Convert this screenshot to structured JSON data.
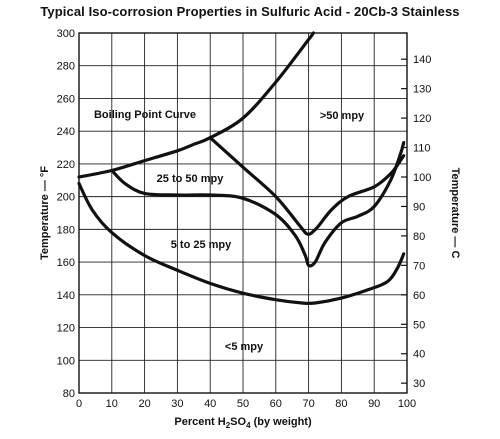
{
  "title": "Typical Iso-corrosion Properties in Sulfuric Acid - 20Cb-3 Stainless",
  "chart_data": {
    "type": "line",
    "title": "Typical Iso-corrosion Properties in Sulfuric Acid - 20Cb-3 Stainless",
    "xlabel": "Percent H2SO4 (by weight)",
    "ylabel": "Temperature — °F",
    "y2label": "Temperature — C",
    "xlim": [
      0,
      100
    ],
    "ylim": [
      80,
      300
    ],
    "y2lim": [
      27,
      149
    ],
    "grid": true,
    "x_ticks": [
      0,
      10,
      20,
      30,
      40,
      50,
      60,
      70,
      80,
      90,
      100
    ],
    "y_ticks": [
      80,
      100,
      120,
      140,
      160,
      180,
      200,
      220,
      240,
      260,
      280,
      300
    ],
    "y2_ticks": [
      30,
      40,
      50,
      60,
      70,
      80,
      90,
      100,
      110,
      120,
      130,
      140
    ],
    "region_labels": [
      "Boiling Point Curve",
      ">50 mpy",
      "25 to 50 mpy",
      "5 to 25 mpy",
      "<5 mpy"
    ],
    "series": [
      {
        "x": [
          0,
          10,
          20,
          30,
          35,
          40,
          50,
          60,
          70,
          71.5
        ],
        "y": [
          212,
          216,
          222,
          228,
          232,
          236,
          248,
          270,
          296,
          300
        ]
      },
      {
        "x": [
          10,
          14,
          20,
          30,
          40,
          50,
          60,
          66,
          69,
          70,
          72,
          75,
          80,
          85,
          90,
          95,
          98,
          99
        ],
        "y": [
          216,
          208,
          202,
          201,
          201,
          199,
          189,
          176,
          164,
          158,
          160,
          172,
          184,
          188,
          194,
          210,
          226,
          233
        ]
      },
      {
        "x": [
          40,
          50,
          60,
          67,
          69,
          70,
          71,
          73,
          77,
          82,
          90,
          95,
          98,
          99
        ],
        "y": [
          236,
          218,
          200,
          183,
          178,
          177,
          178,
          182,
          192,
          200,
          206,
          214,
          222,
          225
        ]
      },
      {
        "x": [
          0,
          4,
          10,
          20,
          30,
          40,
          50,
          60,
          68,
          72,
          80,
          88,
          94,
          97,
          99
        ],
        "y": [
          208,
          192,
          178,
          164,
          155,
          147,
          141,
          137,
          135,
          135,
          138,
          143,
          148,
          156,
          165
        ]
      }
    ]
  }
}
